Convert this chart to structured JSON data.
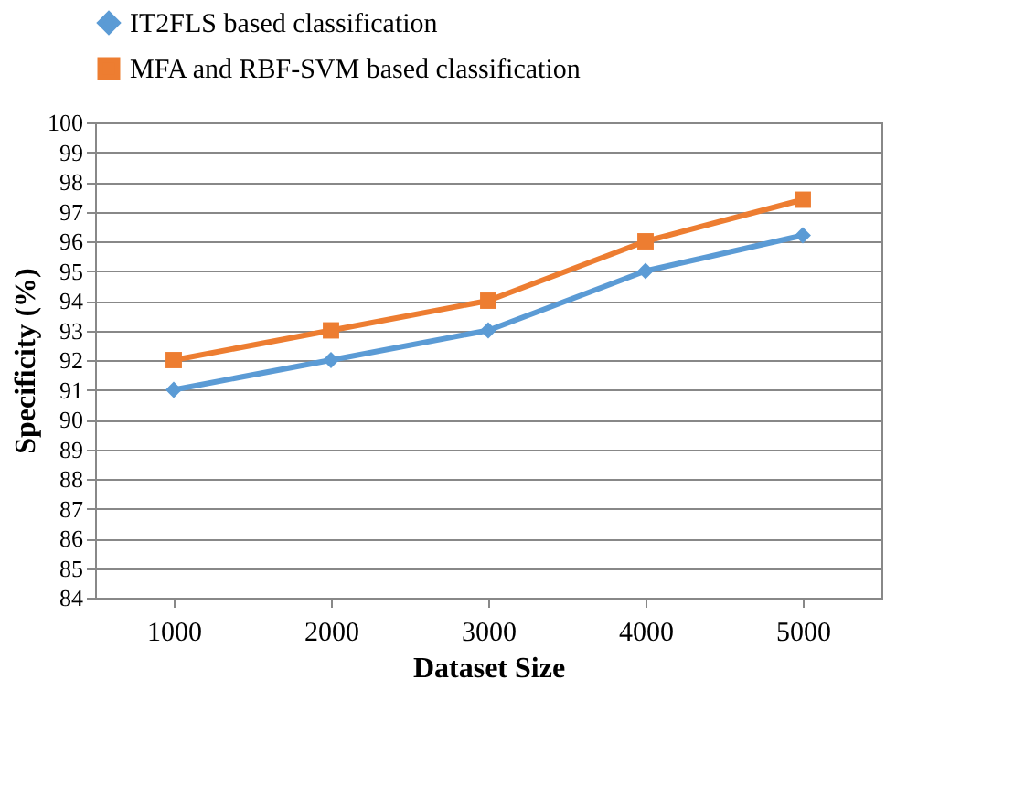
{
  "chart_data": {
    "type": "line",
    "xlabel": "Dataset Size",
    "ylabel": "Specificity   (%)",
    "categories": [
      "1000",
      "2000",
      "3000",
      "4000",
      "5000"
    ],
    "series": [
      {
        "name": "IT2FLS based  classification",
        "color": "#5b9bd5",
        "marker": "diamond",
        "values": [
          91,
          92,
          93,
          95,
          96.2
        ]
      },
      {
        "name": "MFA  and RBF-SVM  based classification",
        "color": "#ed7d31",
        "marker": "square",
        "values": [
          92,
          93,
          94,
          96,
          97.4
        ]
      }
    ],
    "ylim": [
      84,
      100
    ],
    "yticks": [
      84,
      85,
      86,
      87,
      88,
      89,
      90,
      91,
      92,
      93,
      94,
      95,
      96,
      97,
      98,
      99,
      100
    ],
    "grid": "y",
    "legend": "top",
    "line_style": "solid"
  }
}
